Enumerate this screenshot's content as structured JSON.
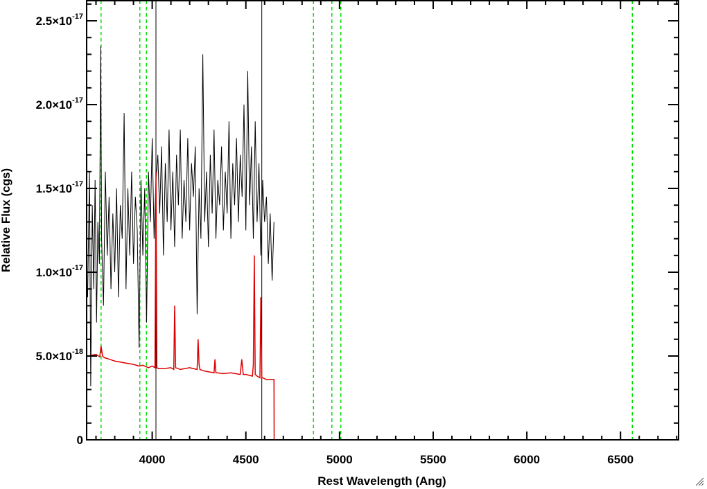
{
  "chart_data": {
    "type": "line",
    "title": "",
    "xlabel": "Rest Wavelength (Ang)",
    "ylabel": "Relative Flux (cgs)",
    "xlim": [
      3650,
      6810
    ],
    "ylim": [
      0,
      2.62e-17
    ],
    "x_ticks": [
      {
        "value": 4000,
        "label": "4000"
      },
      {
        "value": 4500,
        "label": "4500"
      },
      {
        "value": 5000,
        "label": "5000"
      },
      {
        "value": 5500,
        "label": "5500"
      },
      {
        "value": 6000,
        "label": "6000"
      },
      {
        "value": 6500,
        "label": "6500"
      }
    ],
    "y_ticks": [
      {
        "value": 0,
        "label": "0",
        "exp": ""
      },
      {
        "value": 5e-18,
        "label": "5.0×10",
        "exp": "-18"
      },
      {
        "value": 1e-17,
        "label": "1.0×10",
        "exp": "-17"
      },
      {
        "value": 1.5e-17,
        "label": "1.5×10",
        "exp": "-17"
      },
      {
        "value": 2e-17,
        "label": "2.0×10",
        "exp": "-17"
      },
      {
        "value": 2.5e-17,
        "label": "2.5×10",
        "exp": "-17"
      }
    ],
    "grid": false,
    "reference_lines": {
      "color": "#00e000",
      "style": "dashed",
      "x": [
        3727,
        3934,
        3969,
        4861,
        4959,
        5007,
        6563
      ]
    },
    "vertical_markers": {
      "color": "#000000",
      "x": [
        4020,
        4585
      ]
    },
    "series": [
      {
        "color": "#000000",
        "x": [
          3655,
          3665,
          3672,
          3680,
          3688,
          3695,
          3703,
          3710,
          3718,
          3725,
          3730,
          3740,
          3750,
          3760,
          3770,
          3780,
          3790,
          3800,
          3810,
          3820,
          3830,
          3840,
          3850,
          3860,
          3870,
          3880,
          3890,
          3900,
          3910,
          3920,
          3930,
          3940,
          3950,
          3960,
          3970,
          3980,
          3990,
          4000,
          4010,
          4020,
          4030,
          4040,
          4050,
          4060,
          4070,
          4080,
          4090,
          4100,
          4110,
          4120,
          4130,
          4140,
          4150,
          4160,
          4170,
          4180,
          4190,
          4200,
          4210,
          4220,
          4230,
          4240,
          4250,
          4260,
          4270,
          4280,
          4290,
          4300,
          4310,
          4320,
          4330,
          4340,
          4350,
          4360,
          4370,
          4380,
          4390,
          4400,
          4410,
          4420,
          4430,
          4440,
          4450,
          4460,
          4470,
          4480,
          4490,
          4500,
          4510,
          4520,
          4530,
          4540,
          4550,
          4560,
          4570,
          4580,
          4590,
          4600,
          4610,
          4620,
          4630,
          4640,
          4650
        ],
        "y": [
          8.5e-18,
          1.6e-17,
          3.2e-18,
          1.4e-17,
          9e-18,
          1.55e-17,
          7e-18,
          1.3e-17,
          1.05e-17,
          2.35e-17,
          1.2e-17,
          8e-18,
          1.6e-17,
          1.1e-17,
          1.45e-17,
          9e-18,
          1.35e-17,
          1e-17,
          1.5e-17,
          8.5e-18,
          1.4e-17,
          1.2e-17,
          1.95e-17,
          9e-18,
          1.5e-17,
          1.1e-17,
          1.6e-17,
          1.05e-17,
          1.45e-17,
          1.25e-17,
          5.5e-18,
          1.55e-17,
          1.1e-17,
          1.5e-17,
          7e-18,
          1.6e-17,
          1.3e-17,
          1.8e-17,
          1.2e-17,
          1.55e-17,
          1.7e-17,
          1.35e-17,
          1.75e-17,
          1.1e-17,
          1.65e-17,
          1.3e-17,
          1.85e-17,
          1.25e-17,
          1.6e-17,
          1.15e-17,
          1.7e-17,
          1.4e-17,
          1.85e-17,
          1.2e-17,
          1.55e-17,
          1.3e-17,
          1.8e-17,
          1.25e-17,
          1.65e-17,
          1.45e-17,
          1.75e-17,
          7.5e-18,
          1.5e-17,
          1.2e-17,
          2.3e-17,
          1.3e-17,
          1.6e-17,
          1.15e-17,
          1.7e-17,
          1.35e-17,
          1.85e-17,
          1.2e-17,
          1.55e-17,
          1.4e-17,
          1.75e-17,
          1.25e-17,
          1.6e-17,
          1.35e-17,
          1.9e-17,
          1.2e-17,
          1.65e-17,
          1.4e-17,
          1.8e-17,
          1.3e-17,
          1.7e-17,
          1.45e-17,
          2e-17,
          1.25e-17,
          2.2e-17,
          1.4e-17,
          1.75e-17,
          1.2e-17,
          1.9e-17,
          1.3e-17,
          1.65e-17,
          1.1e-17,
          1.55e-17,
          1.3e-17,
          1.45e-17,
          1.05e-17,
          1.35e-17,
          9.5e-18,
          1.3e-17
        ]
      },
      {
        "color": "#dd0000",
        "x": [
          3655,
          3700,
          3720,
          3727,
          3735,
          3745,
          3760,
          3800,
          3850,
          3900,
          3930,
          3950,
          3980,
          4000,
          4015,
          4020,
          4025,
          4035,
          4060,
          4100,
          4115,
          4120,
          4125,
          4150,
          4200,
          4240,
          4245,
          4250,
          4255,
          4280,
          4330,
          4335,
          4340,
          4345,
          4380,
          4420,
          4470,
          4478,
          4486,
          4500,
          4535,
          4540,
          4545,
          4550,
          4560,
          4575,
          4580,
          4585,
          4590,
          4610,
          4640,
          4650,
          4651,
          4700,
          5000,
          5500,
          6000,
          6500,
          6810
        ],
        "y": [
          5e-18,
          5.1e-18,
          4.95e-18,
          5.6e-18,
          5e-18,
          4.9e-18,
          4.85e-18,
          4.7e-18,
          4.6e-18,
          4.5e-18,
          4.4e-18,
          4.45e-18,
          4.3e-18,
          4.4e-18,
          4.3e-18,
          1.6e-17,
          4.3e-18,
          4.25e-18,
          4.25e-18,
          4.3e-18,
          4.2e-18,
          8e-18,
          4.3e-18,
          4.2e-18,
          4.3e-18,
          4.2e-18,
          6e-18,
          4.5e-18,
          4.2e-18,
          4.1e-18,
          4e-18,
          4.8e-18,
          4e-18,
          4e-18,
          3.95e-18,
          4e-18,
          3.9e-18,
          4.8e-18,
          3.9e-18,
          3.9e-18,
          3.8e-18,
          4.5e-18,
          1.1e-17,
          3.9e-18,
          3.8e-18,
          3.7e-18,
          8.5e-18,
          3.7e-18,
          3.7e-18,
          3.6e-18,
          3.6e-18,
          3.6e-18,
          0,
          0,
          0,
          0,
          0,
          0,
          0
        ]
      }
    ]
  }
}
